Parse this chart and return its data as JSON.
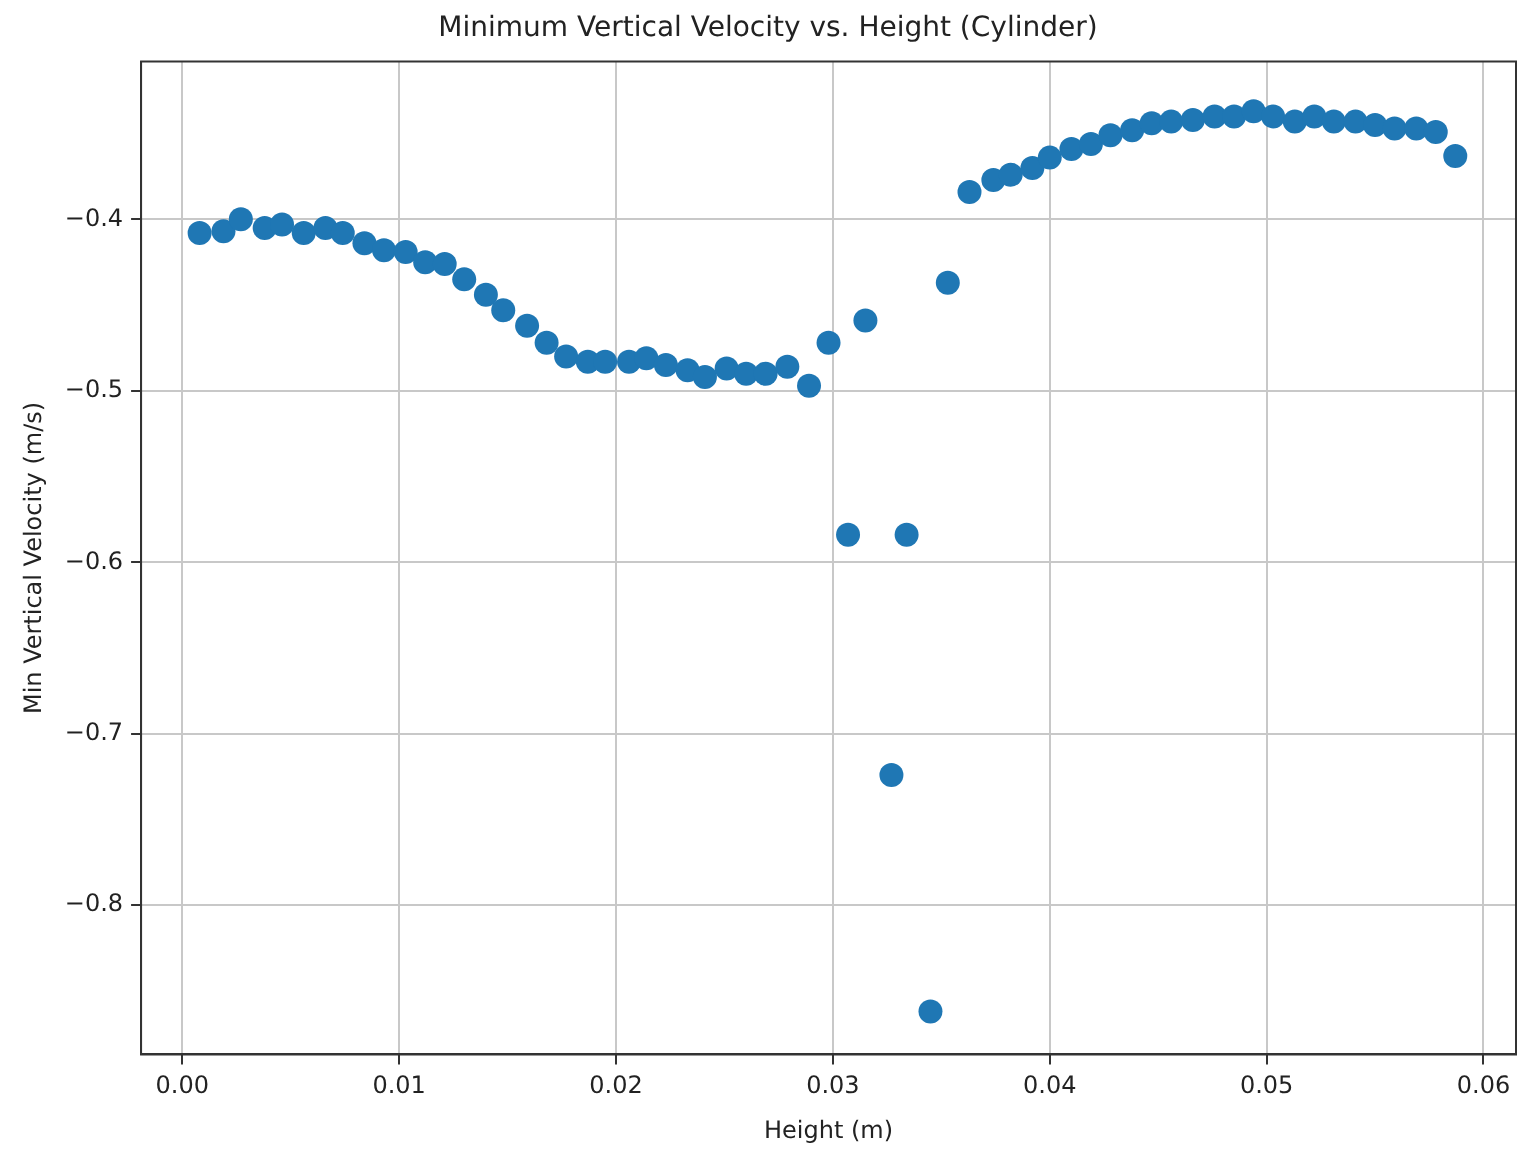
{
  "chart_data": {
    "type": "scatter",
    "title": "Minimum Vertical Velocity vs. Height (Cylinder)",
    "xlabel": "Height (m)",
    "ylabel": "Min Vertical Velocity (m/s)",
    "x": [
      0.0008,
      0.0019,
      0.0027,
      0.0038,
      0.0046,
      0.0056,
      0.0066,
      0.0074,
      0.0084,
      0.0093,
      0.0103,
      0.0112,
      0.0121,
      0.013,
      0.014,
      0.0148,
      0.0159,
      0.0168,
      0.0177,
      0.0187,
      0.0195,
      0.0206,
      0.0214,
      0.0223,
      0.0233,
      0.0241,
      0.0251,
      0.026,
      0.0269,
      0.0279,
      0.0289,
      0.0298,
      0.0307,
      0.0315,
      0.0327,
      0.0334,
      0.0345,
      0.0353,
      0.0363,
      0.0374,
      0.0382,
      0.0392,
      0.04,
      0.041,
      0.0419,
      0.0428,
      0.0438,
      0.0447,
      0.0456,
      0.0466,
      0.0476,
      0.0485,
      0.0494,
      0.0503,
      0.0513,
      0.0522,
      0.0531,
      0.0541,
      0.055,
      0.0559,
      0.0569,
      0.0578,
      0.0587
    ],
    "series": [
      {
        "color": "#1f77b4",
        "values": [
          -0.408,
          -0.407,
          -0.4,
          -0.405,
          -0.403,
          -0.408,
          -0.405,
          -0.408,
          -0.414,
          -0.418,
          -0.419,
          -0.425,
          -0.426,
          -0.435,
          -0.444,
          -0.453,
          -0.462,
          -0.472,
          -0.48,
          -0.483,
          -0.483,
          -0.483,
          -0.481,
          -0.485,
          -0.488,
          -0.492,
          -0.487,
          -0.49,
          -0.49,
          -0.486,
          -0.497,
          -0.472,
          -0.584,
          -0.459,
          -0.724,
          -0.584,
          -0.862,
          -0.437,
          -0.384,
          -0.377,
          -0.374,
          -0.37,
          -0.364,
          -0.359,
          -0.356,
          -0.351,
          -0.348,
          -0.344,
          -0.343,
          -0.342,
          -0.34,
          -0.34,
          -0.337,
          -0.34,
          -0.343,
          -0.34,
          -0.343,
          -0.343,
          -0.345,
          -0.347,
          -0.347,
          -0.349,
          -0.363
        ]
      }
    ],
    "xlim": [
      -0.0019,
      0.0615
    ],
    "ylim": [
      -0.887,
      -0.308
    ],
    "xticks": [
      {
        "value": 0,
        "label": "0.00"
      },
      {
        "value": 0.01,
        "label": "0.01"
      },
      {
        "value": 0.02,
        "label": "0.02"
      },
      {
        "value": 0.03,
        "label": "0.03"
      },
      {
        "value": 0.04,
        "label": "0.04"
      },
      {
        "value": 0.05,
        "label": "0.05"
      },
      {
        "value": 0.06,
        "label": "0.06"
      }
    ],
    "yticks": [
      {
        "value": -0.8,
        "label": "−0.8"
      },
      {
        "value": -0.7,
        "label": "−0.7"
      },
      {
        "value": -0.6,
        "label": "−0.6"
      },
      {
        "value": -0.5,
        "label": "−0.5"
      },
      {
        "value": -0.4,
        "label": "−0.4"
      }
    ],
    "grid": true,
    "legend": false,
    "marker": "circle"
  }
}
